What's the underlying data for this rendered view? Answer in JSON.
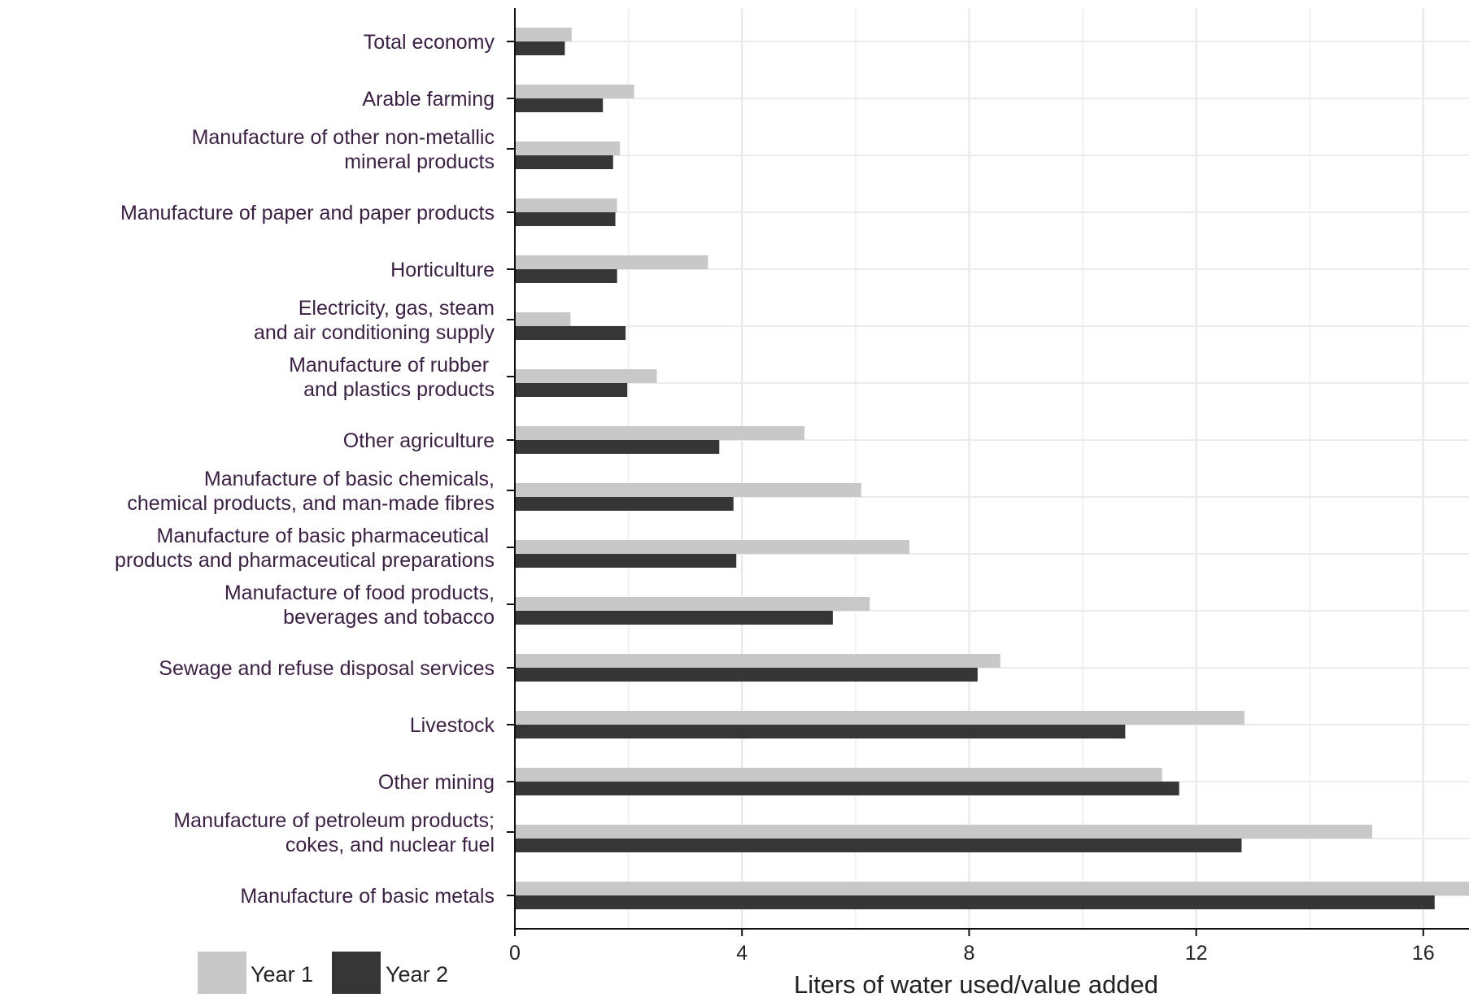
{
  "chart_data": {
    "type": "bar",
    "orientation": "horizontal",
    "xlabel": "Liters of water used/value added",
    "ylabel": "",
    "xlim": [
      0,
      17
    ],
    "xticks": [
      0,
      4,
      8,
      12,
      16
    ],
    "xtick_labels": [
      "0",
      "4",
      "8",
      "12",
      "16"
    ],
    "grid": true,
    "legend_position": "bottom-left",
    "categories": [
      [
        "Total economy"
      ],
      [
        "Arable farming"
      ],
      [
        "Manufacture of other non-metallic",
        "mineral products"
      ],
      [
        "Manufacture of paper and paper products"
      ],
      [
        "Horticulture"
      ],
      [
        "Electricity, gas, steam",
        "and air conditioning supply"
      ],
      [
        "Manufacture of rubber ",
        "and plastics products"
      ],
      [
        "Other agriculture"
      ],
      [
        "Manufacture of basic chemicals,",
        "chemical products, and man-made fibres"
      ],
      [
        "Manufacture of basic pharmaceutical ",
        "products and pharmaceutical preparations"
      ],
      [
        "Manufacture of food products,",
        "beverages and tobacco"
      ],
      [
        "Sewage and refuse disposal services"
      ],
      [
        "Livestock"
      ],
      [
        "Other mining "
      ],
      [
        "Manufacture of petroleum products;",
        "cokes, and nuclear fuel"
      ],
      [
        "Manufacture of basic metals"
      ]
    ],
    "series": [
      {
        "name": "Year 1",
        "color": "#c8c8c8",
        "values": [
          1.0,
          2.1,
          1.85,
          1.8,
          3.4,
          0.98,
          2.5,
          5.1,
          6.1,
          6.95,
          6.25,
          8.55,
          12.85,
          11.4,
          15.1,
          17.0
        ]
      },
      {
        "name": "Year 2",
        "color": "#363636",
        "values": [
          0.88,
          1.55,
          1.73,
          1.77,
          1.8,
          1.95,
          1.98,
          3.6,
          3.85,
          3.9,
          5.6,
          8.15,
          10.75,
          11.7,
          12.8,
          16.2
        ]
      }
    ]
  }
}
